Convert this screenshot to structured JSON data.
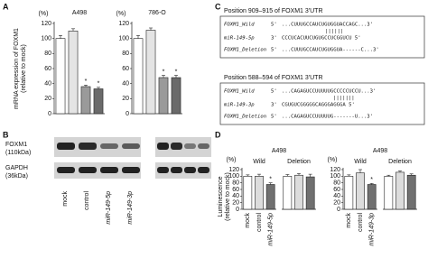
{
  "panels": [
    "A",
    "B",
    "C",
    "D"
  ],
  "chart_data": [
    {
      "type": "bar",
      "title": "A498",
      "unit": "(%)",
      "ylabel": [
        "mRNA expression of FOXM1",
        "(relative to mock)"
      ],
      "categories": [
        "mock",
        "control",
        "miR-149-5p",
        "miR-149-3p"
      ],
      "values": [
        100,
        110,
        36,
        33
      ],
      "errors": [
        4,
        3,
        2,
        2
      ],
      "significance": [
        null,
        null,
        "*",
        "*"
      ],
      "colors": [
        "#ffffff",
        "#e4e4e4",
        "#9a9a9a",
        "#6a6a6a"
      ],
      "ylim": [
        0,
        120
      ],
      "yticks": [
        0,
        20,
        40,
        60,
        80,
        100,
        120
      ]
    },
    {
      "type": "bar",
      "title": "786-O",
      "unit": "(%)",
      "values": [
        100,
        111,
        48,
        48
      ],
      "errors": [
        4,
        3,
        3,
        3
      ],
      "significance": [
        null,
        null,
        "*",
        "*"
      ],
      "colors": [
        "#ffffff",
        "#e4e4e4",
        "#9a9a9a",
        "#6a6a6a"
      ],
      "ylim": [
        0,
        120
      ],
      "yticks": [
        0,
        20,
        40,
        60,
        80,
        100,
        120
      ]
    },
    {
      "type": "bar",
      "title": "A498",
      "subtitle": "Wild",
      "unit": "(%)",
      "ylabel": [
        "Luminescence",
        "(relative to mock)"
      ],
      "categories": [
        "mock",
        "control",
        "miR-149-5p"
      ],
      "values": [
        100,
        100,
        75
      ],
      "errors": [
        4,
        6,
        5
      ],
      "significance": [
        null,
        null,
        "*"
      ],
      "colors": [
        "#ffffff",
        "#dcdcdc",
        "#707070"
      ],
      "ylim": [
        0,
        120
      ],
      "yticks": [
        0,
        20,
        40,
        60,
        80,
        100,
        120
      ]
    },
    {
      "type": "bar",
      "subtitle": "Deletion",
      "values": [
        100,
        103,
        98
      ],
      "errors": [
        5,
        5,
        8
      ],
      "colors": [
        "#ffffff",
        "#dcdcdc",
        "#707070"
      ],
      "ylim": [
        0,
        120
      ]
    },
    {
      "type": "bar",
      "title": "A498",
      "subtitle": "Wild",
      "unit": "(%)",
      "categories": [
        "mock",
        "control",
        "miR-149-3p"
      ],
      "values": [
        100,
        110,
        75
      ],
      "errors": [
        4,
        10,
        3
      ],
      "significance": [
        null,
        null,
        "*"
      ],
      "colors": [
        "#ffffff",
        "#dcdcdc",
        "#707070"
      ],
      "ylim": [
        0,
        120
      ],
      "yticks": [
        0,
        20,
        40,
        60,
        80,
        100,
        120
      ]
    },
    {
      "type": "bar",
      "subtitle": "Deletion",
      "values": [
        100,
        112,
        103
      ],
      "errors": [
        3,
        4,
        4
      ],
      "colors": [
        "#ffffff",
        "#dcdcdc",
        "#707070"
      ],
      "ylim": [
        0,
        120
      ]
    }
  ],
  "blot": {
    "rows": [
      {
        "name": "FOXM1",
        "size": "(110kDa)"
      },
      {
        "name": "GAPDH",
        "size": "(36kDa)"
      }
    ]
  },
  "alignments": [
    {
      "title": "Position 909–915 of FOXM1 3'UTR",
      "rows": [
        {
          "name": "FOXM1_Wild",
          "end": "5'",
          "seq": "...CUUUGCCAUCUGUGGUACCAGC...3'"
        },
        {
          "name": "miR-149-5p",
          "end": "3'",
          "seq": "CCCUCACUUCUGUGCCUCGGUCU 5'"
        },
        {
          "name": "FOXM1_Deletion",
          "end": "5'",
          "seq": "...CUUUGCCAUCUGUGGUA------C...3'"
        }
      ],
      "pairs": "||||||"
    },
    {
      "title": "Position 588–594 of FOXM1 3'UTR",
      "rows": [
        {
          "name": "FOXM1_Wild",
          "end": "5'",
          "seq": "...CAGAGUCCUUUUUGCCCCCUCCU...3'"
        },
        {
          "name": "miR-149-3p",
          "end": "3'",
          "seq": "CGUGUCGGGGGCAGGGAGGGA 5'"
        },
        {
          "name": "FOXM1_Deletion",
          "end": "5'",
          "seq": "...CAGAGUCCUUUUUG-------U...3'"
        }
      ],
      "pairs": "|||||||"
    }
  ]
}
